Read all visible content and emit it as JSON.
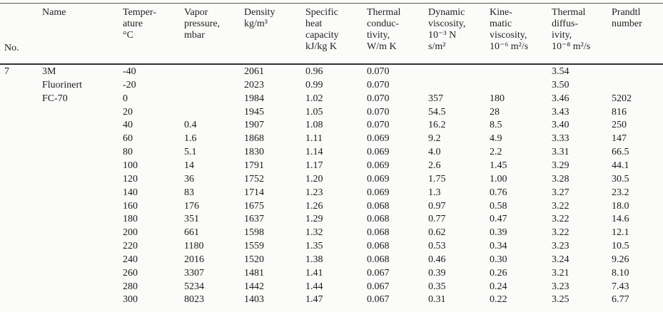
{
  "headers": {
    "no": [
      "No."
    ],
    "name": [
      "Name"
    ],
    "temp": [
      "Temper-",
      "ature",
      "°C"
    ],
    "vapor": [
      "Vapor",
      "pressure,",
      "mbar"
    ],
    "density": [
      "Density",
      "kg/m³"
    ],
    "cp": [
      "Specific",
      "heat",
      "capacity",
      "kJ/kg K"
    ],
    "k": [
      "Thermal",
      "conduc-",
      "tivity,",
      "W/m K"
    ],
    "mu": [
      "Dynamic",
      "viscosity,",
      "10⁻³ N",
      "s/m²"
    ],
    "nu": [
      "Kine-",
      "matic",
      "viscosity,",
      "10⁻⁶ m²/s"
    ],
    "alpha": [
      "Thermal",
      "diffus-",
      "ivity,",
      "10⁻⁸ m²/s"
    ],
    "pr": [
      "Prandtl",
      "number"
    ]
  },
  "entry": {
    "no": "7",
    "name": [
      "3M",
      "Fluorinert",
      "FC-70"
    ]
  },
  "rows": [
    {
      "temp": "-40",
      "vapor": "",
      "density": "2061",
      "cp": "0.96",
      "k": "0.070",
      "mu": "",
      "nu": "",
      "alpha": "3.54",
      "pr": ""
    },
    {
      "temp": "-20",
      "vapor": "",
      "density": "2023",
      "cp": "0.99",
      "k": "0.070",
      "mu": "",
      "nu": "",
      "alpha": "3.50",
      "pr": ""
    },
    {
      "temp": "0",
      "vapor": "",
      "density": "1984",
      "cp": "1.02",
      "k": "0.070",
      "mu": "357",
      "nu": "180",
      "alpha": "3.46",
      "pr": "5202"
    },
    {
      "temp": "20",
      "vapor": "",
      "density": "1945",
      "cp": "1.05",
      "k": "0.070",
      "mu": "54.5",
      "nu": "28",
      "alpha": "3.43",
      "pr": "816"
    },
    {
      "temp": "40",
      "vapor": "0.4",
      "density": "1907",
      "cp": "1.08",
      "k": "0.070",
      "mu": "16.2",
      "nu": "8.5",
      "alpha": "3.40",
      "pr": "250"
    },
    {
      "temp": "60",
      "vapor": "1.6",
      "density": "1868",
      "cp": "1.11",
      "k": "0.069",
      "mu": "9.2",
      "nu": "4.9",
      "alpha": "3.33",
      "pr": "147"
    },
    {
      "temp": "80",
      "vapor": "5.1",
      "density": "1830",
      "cp": "1.14",
      "k": "0.069",
      "mu": "4.0",
      "nu": "2.2",
      "alpha": "3.31",
      "pr": "66.5"
    },
    {
      "temp": "100",
      "vapor": "14",
      "density": "1791",
      "cp": "1.17",
      "k": "0.069",
      "mu": "2.6",
      "nu": "1.45",
      "alpha": "3.29",
      "pr": "44.1"
    },
    {
      "temp": "120",
      "vapor": "36",
      "density": "1752",
      "cp": "1.20",
      "k": "0.069",
      "mu": "1.75",
      "nu": "1.00",
      "alpha": "3.28",
      "pr": "30.5"
    },
    {
      "temp": "140",
      "vapor": "83",
      "density": "1714",
      "cp": "1.23",
      "k": "0.069",
      "mu": "1.3",
      "nu": "0.76",
      "alpha": "3.27",
      "pr": "23.2"
    },
    {
      "temp": "160",
      "vapor": "176",
      "density": "1675",
      "cp": "1.26",
      "k": "0.068",
      "mu": "0.97",
      "nu": "0.58",
      "alpha": "3.22",
      "pr": "18.0"
    },
    {
      "temp": "180",
      "vapor": "351",
      "density": "1637",
      "cp": "1.29",
      "k": "0.068",
      "mu": "0.77",
      "nu": "0.47",
      "alpha": "3.22",
      "pr": "14.6"
    },
    {
      "temp": "200",
      "vapor": "661",
      "density": "1598",
      "cp": "1.32",
      "k": "0.068",
      "mu": "0.62",
      "nu": "0.39",
      "alpha": "3.22",
      "pr": "12.1"
    },
    {
      "temp": "220",
      "vapor": "1180",
      "density": "1559",
      "cp": "1.35",
      "k": "0.068",
      "mu": "0.53",
      "nu": "0.34",
      "alpha": "3.23",
      "pr": "10.5"
    },
    {
      "temp": "240",
      "vapor": "2016",
      "density": "1520",
      "cp": "1.38",
      "k": "0.068",
      "mu": "0.46",
      "nu": "0.30",
      "alpha": "3.24",
      "pr": "9.26"
    },
    {
      "temp": "260",
      "vapor": "3307",
      "density": "1481",
      "cp": "1.41",
      "k": "0.067",
      "mu": "0.39",
      "nu": "0.26",
      "alpha": "3.21",
      "pr": "8.10"
    },
    {
      "temp": "280",
      "vapor": "5234",
      "density": "1442",
      "cp": "1.44",
      "k": "0.067",
      "mu": "0.35",
      "nu": "0.24",
      "alpha": "3.23",
      "pr": "7.43"
    },
    {
      "temp": "300",
      "vapor": "8023",
      "density": "1403",
      "cp": "1.47",
      "k": "0.067",
      "mu": "0.31",
      "nu": "0.22",
      "alpha": "3.25",
      "pr": "6.77"
    }
  ]
}
